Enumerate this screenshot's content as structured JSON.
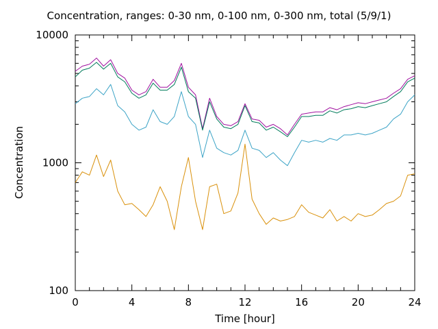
{
  "chart_data": {
    "type": "line",
    "title": "Concentration, ranges: 0-30 nm, 0-100 nm, 0-300 nm, total (5/9/1)",
    "xlabel": "Time [hour]",
    "ylabel": "Concentration",
    "xlim": [
      0,
      24
    ],
    "ylim": [
      100,
      10000
    ],
    "yscale": "log",
    "grid": false,
    "x_ticks": [
      0,
      4,
      8,
      12,
      16,
      20,
      24
    ],
    "y_ticks": [
      100,
      1000,
      10000
    ],
    "x": [
      0,
      0.5,
      1,
      1.5,
      2,
      2.5,
      3,
      3.5,
      4,
      4.5,
      5,
      5.5,
      6,
      6.5,
      7,
      7.5,
      8,
      8.5,
      9,
      9.5,
      10,
      10.5,
      11,
      11.5,
      12,
      12.5,
      13,
      13.5,
      14,
      14.5,
      15,
      15.5,
      16,
      16.5,
      17,
      17.5,
      18,
      18.5,
      19,
      19.5,
      20,
      20.5,
      21,
      21.5,
      22,
      22.5,
      23,
      23.5,
      24
    ],
    "series": [
      {
        "color": "#a0109f",
        "values": [
          5200,
          5700,
          5900,
          6600,
          5700,
          6400,
          5000,
          4600,
          3700,
          3400,
          3600,
          4500,
          3900,
          3900,
          4400,
          6000,
          3900,
          3400,
          1850,
          3200,
          2300,
          2000,
          1950,
          2100,
          2900,
          2200,
          2150,
          1900,
          2000,
          1850,
          1650,
          2000,
          2400,
          2450,
          2500,
          2500,
          2700,
          2600,
          2750,
          2850,
          2950,
          2900,
          3000,
          3100,
          3200,
          3500,
          3800,
          4500,
          4800
        ]
      },
      {
        "color": "#007b5a",
        "values": [
          4700,
          5300,
          5500,
          6100,
          5400,
          6000,
          4700,
          4300,
          3500,
          3200,
          3400,
          4200,
          3700,
          3700,
          4100,
          5600,
          3600,
          3200,
          1800,
          3000,
          2200,
          1900,
          1850,
          2000,
          2800,
          2100,
          2050,
          1800,
          1900,
          1750,
          1600,
          1900,
          2300,
          2300,
          2350,
          2350,
          2550,
          2450,
          2600,
          2650,
          2750,
          2700,
          2800,
          2900,
          3000,
          3300,
          3600,
          4300,
          4600
        ]
      },
      {
        "color": "#3ba3c6",
        "values": [
          2900,
          3200,
          3300,
          3800,
          3400,
          4100,
          2800,
          2500,
          2000,
          1800,
          1900,
          2600,
          2100,
          2000,
          2300,
          3600,
          2300,
          2000,
          1100,
          1800,
          1300,
          1200,
          1150,
          1250,
          1800,
          1300,
          1250,
          1100,
          1200,
          1050,
          950,
          1200,
          1500,
          1450,
          1500,
          1450,
          1550,
          1500,
          1650,
          1650,
          1700,
          1650,
          1700,
          1800,
          1900,
          2200,
          2400,
          3000,
          3400
        ]
      },
      {
        "color": "#d9900a",
        "values": [
          700,
          850,
          800,
          1150,
          780,
          1050,
          600,
          470,
          480,
          430,
          380,
          470,
          650,
          500,
          300,
          650,
          1100,
          500,
          300,
          650,
          680,
          400,
          420,
          580,
          1400,
          520,
          400,
          330,
          370,
          350,
          360,
          380,
          470,
          410,
          390,
          370,
          430,
          350,
          380,
          350,
          400,
          380,
          390,
          430,
          480,
          500,
          550,
          800,
          820
        ]
      }
    ]
  }
}
